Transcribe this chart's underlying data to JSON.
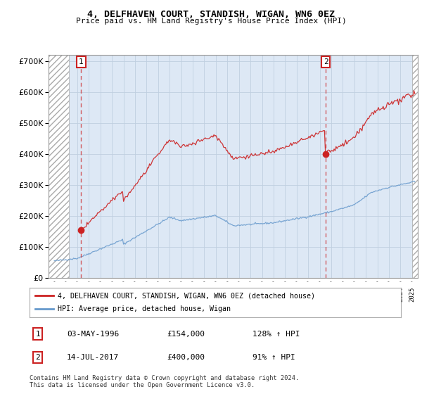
{
  "title": "4, DELFHAVEN COURT, STANDISH, WIGAN, WN6 0EZ",
  "subtitle": "Price paid vs. HM Land Registry's House Price Index (HPI)",
  "legend_line1": "4, DELFHAVEN COURT, STANDISH, WIGAN, WN6 0EZ (detached house)",
  "legend_line2": "HPI: Average price, detached house, Wigan",
  "footnote1": "Contains HM Land Registry data © Crown copyright and database right 2024.",
  "footnote2": "This data is licensed under the Open Government Licence v3.0.",
  "table": [
    {
      "num": "1",
      "date": "03-MAY-1996",
      "price": "£154,000",
      "hpi": "128% ↑ HPI"
    },
    {
      "num": "2",
      "date": "14-JUL-2017",
      "price": "£400,000",
      "hpi": "91% ↑ HPI"
    }
  ],
  "sale1_year": 1996.33,
  "sale1_price": 154000,
  "sale2_year": 2017.53,
  "sale2_price": 400000,
  "hpi_color": "#6699cc",
  "sale_color": "#cc2222",
  "bg_color": "#dde8f5",
  "grid_color": "#c0cfe0",
  "ylim": [
    0,
    720000
  ],
  "xlim_left": 1993.5,
  "xlim_right": 2025.5,
  "xticks": [
    1994,
    1995,
    1996,
    1997,
    1998,
    1999,
    2000,
    2001,
    2002,
    2003,
    2004,
    2005,
    2006,
    2007,
    2008,
    2009,
    2010,
    2011,
    2012,
    2013,
    2014,
    2015,
    2016,
    2017,
    2018,
    2019,
    2020,
    2021,
    2022,
    2023,
    2024,
    2025
  ],
  "yticks": [
    0,
    100000,
    200000,
    300000,
    400000,
    500000,
    600000,
    700000
  ]
}
